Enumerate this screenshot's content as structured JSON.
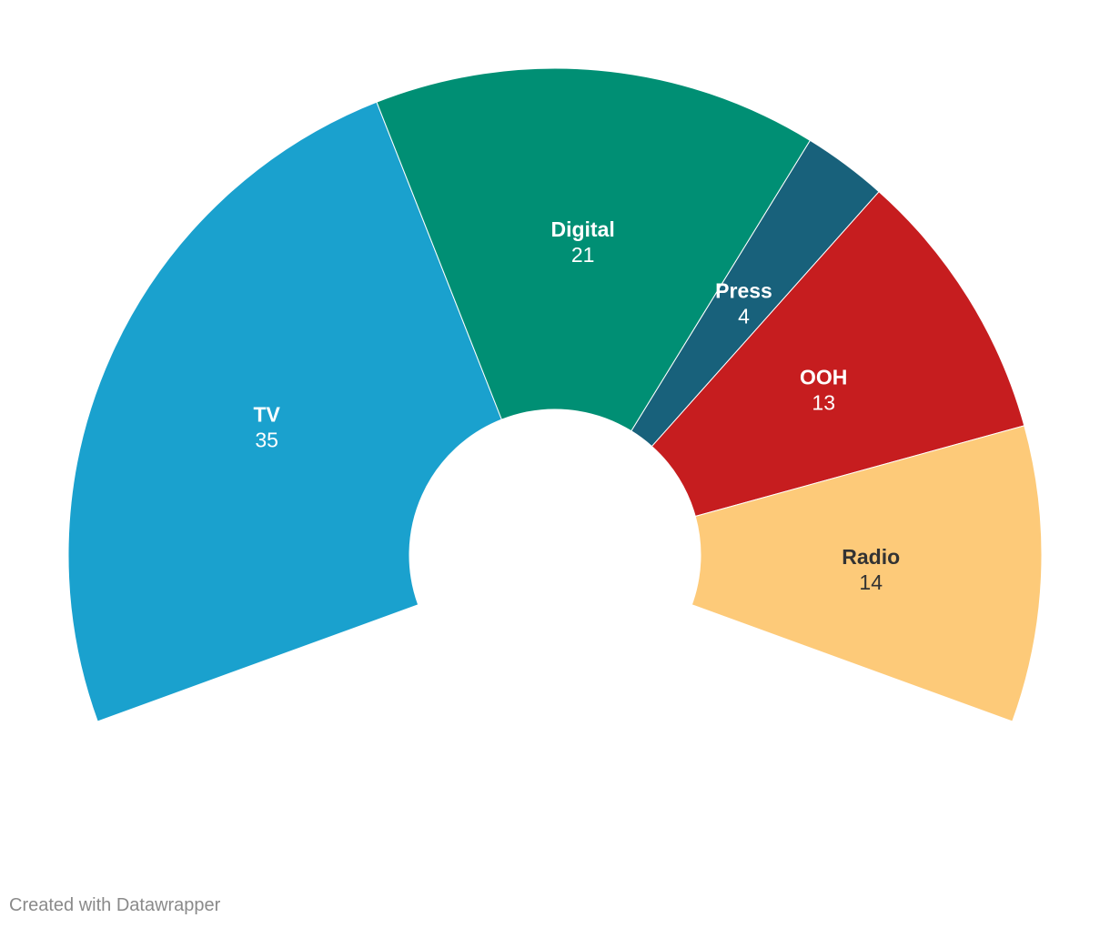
{
  "chart_data": {
    "type": "pie",
    "variant": "semicircle-donut",
    "title": "",
    "slices": [
      {
        "label": "TV",
        "value": 35,
        "color": "#1aa1ce",
        "text_color": "#ffffff"
      },
      {
        "label": "Digital",
        "value": 21,
        "color": "#008f74",
        "text_color": "#ffffff"
      },
      {
        "label": "Press",
        "value": 4,
        "color": "#18617b",
        "text_color": "#ffffff"
      },
      {
        "label": "OOH",
        "value": 13,
        "color": "#c61d1f",
        "text_color": "#ffffff"
      },
      {
        "label": "Radio",
        "value": 14,
        "color": "#fdca79",
        "text_color": "#333333"
      }
    ],
    "labels_inside": true
  },
  "footer": {
    "credit": "Created with Datawrapper"
  }
}
